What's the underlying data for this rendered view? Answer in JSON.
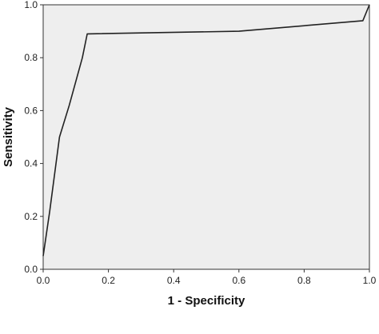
{
  "chart_data": {
    "type": "line",
    "title": "",
    "xlabel": "1 - Specificity",
    "ylabel": "Sensitivity",
    "xlim": [
      0,
      1
    ],
    "ylim": [
      0,
      1
    ],
    "grid": false,
    "legend": "none",
    "x_ticks": [
      "0.0",
      "0.2",
      "0.4",
      "0.6",
      "0.8",
      "1.0"
    ],
    "y_ticks": [
      "0.0",
      "0.2",
      "0.4",
      "0.6",
      "0.8",
      "1.0"
    ],
    "series": [
      {
        "x": [
          0.0,
          0.02,
          0.05,
          0.08,
          0.12,
          0.135,
          0.6,
          0.98,
          1.0
        ],
        "y": [
          0.05,
          0.22,
          0.5,
          0.62,
          0.8,
          0.89,
          0.9,
          0.94,
          1.0
        ]
      }
    ],
    "colors": {
      "plot_background": "#eeeeee",
      "line": "#222222",
      "frame": "#333333"
    }
  }
}
